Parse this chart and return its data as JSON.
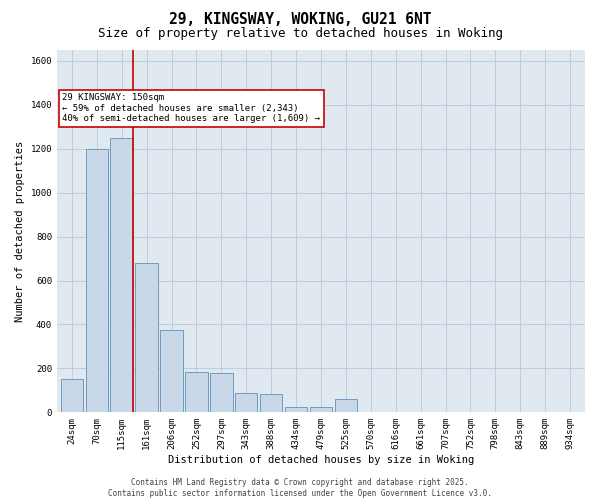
{
  "title_line1": "29, KINGSWAY, WOKING, GU21 6NT",
  "title_line2": "Size of property relative to detached houses in Woking",
  "xlabel": "Distribution of detached houses by size in Woking",
  "ylabel": "Number of detached properties",
  "categories": [
    "24sqm",
    "70sqm",
    "115sqm",
    "161sqm",
    "206sqm",
    "252sqm",
    "297sqm",
    "343sqm",
    "388sqm",
    "434sqm",
    "479sqm",
    "525sqm",
    "570sqm",
    "616sqm",
    "661sqm",
    "707sqm",
    "752sqm",
    "798sqm",
    "843sqm",
    "889sqm",
    "934sqm"
  ],
  "values": [
    150,
    1200,
    1250,
    680,
    375,
    185,
    180,
    90,
    85,
    25,
    25,
    60,
    0,
    0,
    0,
    0,
    0,
    0,
    0,
    0,
    0
  ],
  "bar_color": "#c8d8e8",
  "bar_edge_color": "#6090b8",
  "grid_color": "#b8c8d8",
  "background_color": "#e0e8f0",
  "vline_color": "#cc0000",
  "annotation_box_text": "29 KINGSWAY: 150sqm\n← 59% of detached houses are smaller (2,343)\n40% of semi-detached houses are larger (1,609) →",
  "annotation_box_color": "#cc0000",
  "ylim": [
    0,
    1650
  ],
  "yticks": [
    0,
    200,
    400,
    600,
    800,
    1000,
    1200,
    1400,
    1600
  ],
  "footer_line1": "Contains HM Land Registry data © Crown copyright and database right 2025.",
  "footer_line2": "Contains public sector information licensed under the Open Government Licence v3.0.",
  "title_fontsize": 10.5,
  "subtitle_fontsize": 9,
  "axis_label_fontsize": 7.5,
  "tick_fontsize": 6.5,
  "annotation_fontsize": 6.5,
  "footer_fontsize": 5.5,
  "ylabel_fontsize": 7.5
}
